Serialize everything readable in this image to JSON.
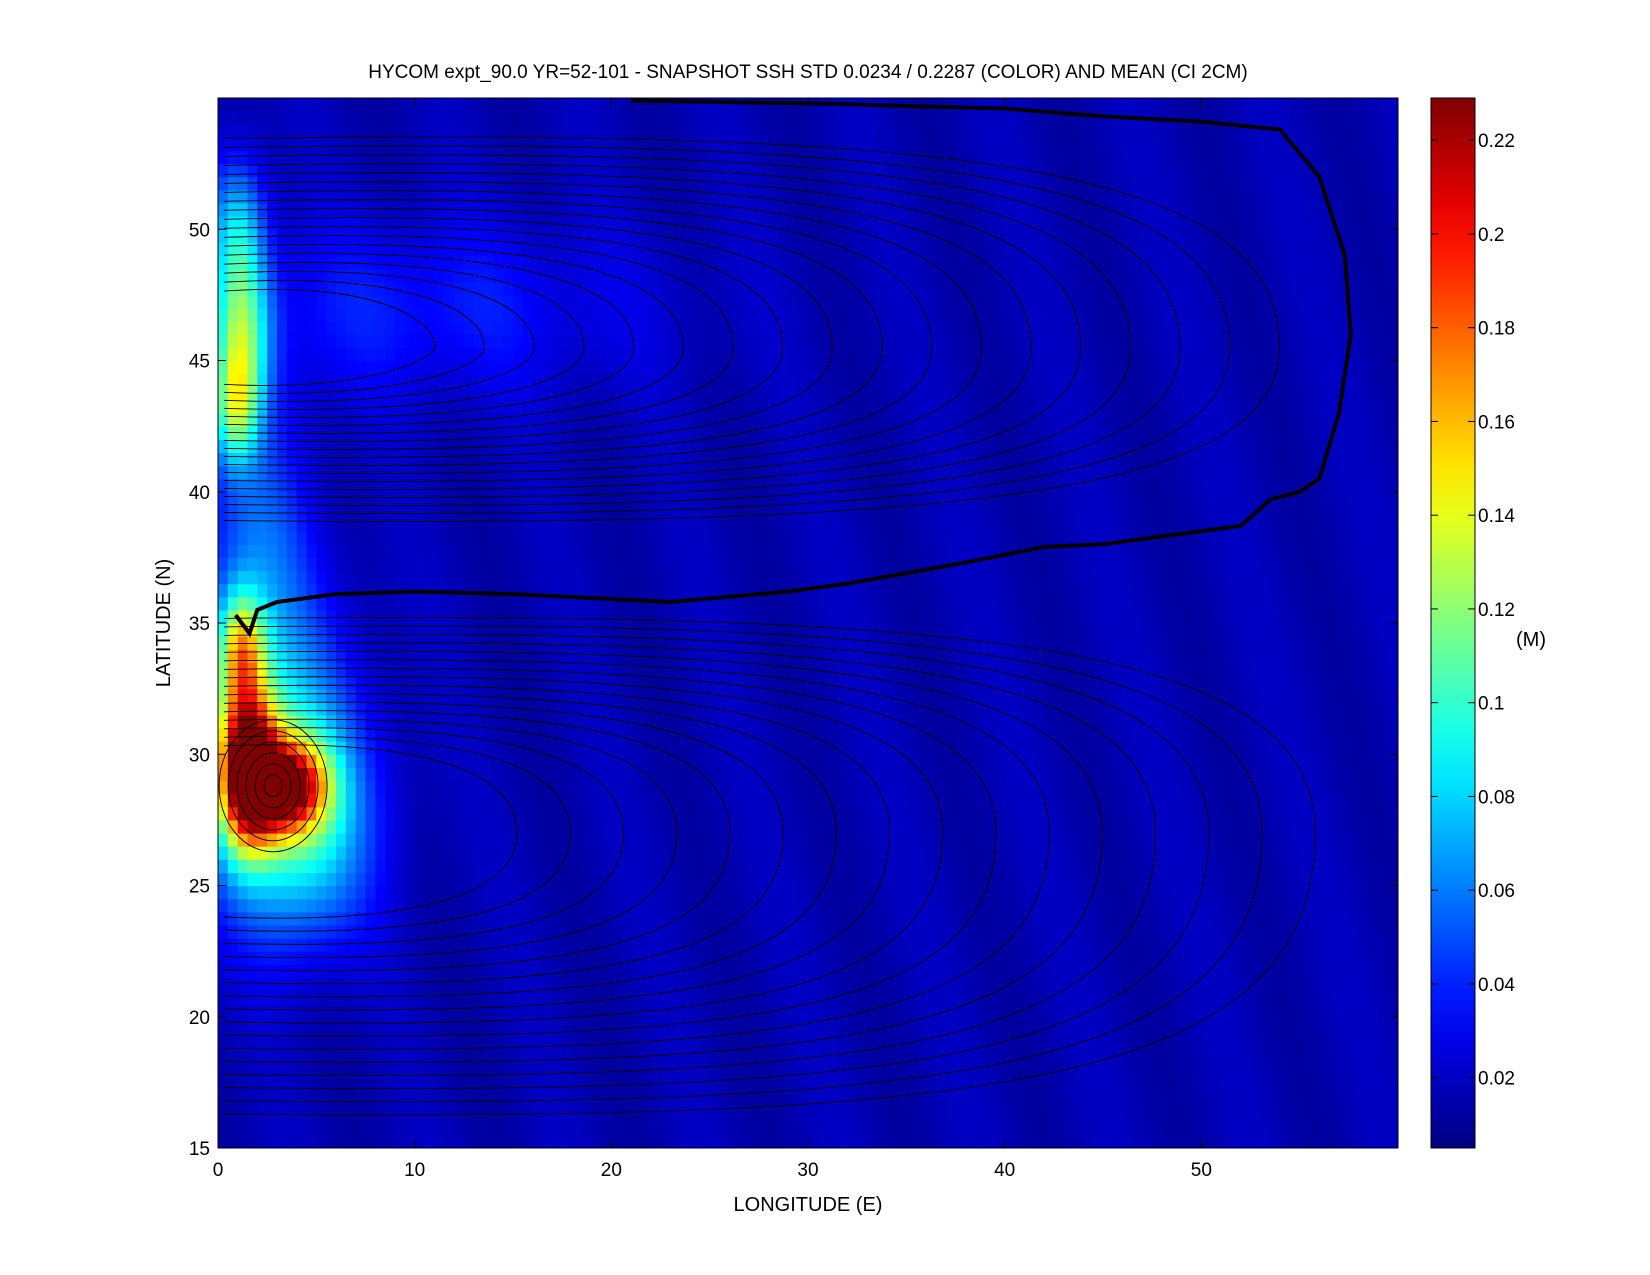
{
  "chart_data": {
    "type": "heatmap",
    "title": "HYCOM expt_90.0 YR=52-101 - SNAPSHOT SSH STD 0.0234 / 0.2287 (COLOR) AND MEAN (CI 2CM)",
    "xlabel": "LONGITUDE (E)",
    "ylabel": "LATITUDE (N)",
    "xlim": [
      0,
      60
    ],
    "ylim": [
      15,
      55
    ],
    "x_ticks": [
      0,
      10,
      20,
      30,
      40,
      50
    ],
    "y_ticks": [
      15,
      20,
      25,
      30,
      35,
      40,
      45,
      50
    ],
    "colorbar": {
      "label": "(M)",
      "range": [
        0.0234,
        0.2287
      ],
      "ticks": [
        "0.02",
        "0.04",
        "0.06",
        "0.08",
        "0.1",
        "0.12",
        "0.14",
        "0.16",
        "0.18",
        "0.2",
        "0.22"
      ],
      "tick_values": [
        0.02,
        0.04,
        0.06,
        0.08,
        0.1,
        0.12,
        0.14,
        0.16,
        0.18,
        0.2,
        0.22
      ],
      "colormap": "jet",
      "display_min": 0.005,
      "display_max": 0.229
    },
    "std_field": {
      "background": 0.02,
      "features": [
        {
          "lon": 1.5,
          "lat": 29.5,
          "sd_lon": 1.0,
          "sd_lat": 2.0,
          "value": 0.2
        },
        {
          "lon": 3.5,
          "lat": 28.8,
          "sd_lon": 1.4,
          "sd_lat": 1.2,
          "value": 0.15
        },
        {
          "lon": 4.0,
          "lat": 27.0,
          "sd_lon": 2.5,
          "sd_lat": 3.0,
          "value": 0.07
        },
        {
          "lon": 1.2,
          "lat": 34.0,
          "sd_lon": 0.8,
          "sd_lat": 1.5,
          "value": 0.1
        },
        {
          "lon": 2.5,
          "lat": 31.0,
          "sd_lon": 3.0,
          "sd_lat": 3.5,
          "value": 0.05
        },
        {
          "lon": 1.2,
          "lat": 46.0,
          "sd_lon": 1.0,
          "sd_lat": 2.0,
          "value": 0.08
        },
        {
          "lon": 0.9,
          "lat": 43.2,
          "sd_lon": 0.8,
          "sd_lat": 1.5,
          "value": 0.08
        },
        {
          "lon": 10.0,
          "lat": 47.0,
          "sd_lon": 8.0,
          "sd_lat": 2.5,
          "value": 0.022
        },
        {
          "lon": 1.0,
          "lat": 50.0,
          "sd_lon": 1.0,
          "sd_lat": 2.0,
          "value": 0.06
        },
        {
          "lon": 2.0,
          "lat": 38.0,
          "sd_lon": 2.0,
          "sd_lat": 4.0,
          "value": 0.035
        }
      ]
    },
    "zero_contour": [
      [
        21.0,
        54.9
      ],
      [
        30.0,
        54.8
      ],
      [
        40.0,
        54.6
      ],
      [
        45.0,
        54.3
      ],
      [
        50.0,
        54.1
      ],
      [
        54.0,
        53.8
      ],
      [
        56.0,
        52.0
      ],
      [
        57.3,
        49.0
      ],
      [
        57.6,
        46.0
      ],
      [
        57.0,
        43.0
      ],
      [
        56.0,
        40.5
      ],
      [
        55.0,
        40.0
      ],
      [
        53.5,
        39.7
      ],
      [
        52.0,
        38.7
      ],
      [
        50.0,
        38.5
      ],
      [
        48.0,
        38.3
      ],
      [
        45.0,
        38.0
      ],
      [
        42.0,
        37.9
      ],
      [
        38.0,
        37.3
      ],
      [
        35.0,
        36.9
      ],
      [
        32.0,
        36.5
      ],
      [
        29.0,
        36.2
      ],
      [
        26.0,
        36.0
      ],
      [
        23.0,
        35.8
      ],
      [
        15.0,
        36.1
      ],
      [
        10.0,
        36.2
      ],
      [
        6.0,
        36.1
      ],
      [
        3.0,
        35.8
      ],
      [
        2.0,
        35.5
      ],
      [
        1.6,
        34.6
      ],
      [
        1.2,
        35.0
      ],
      [
        0.9,
        35.3
      ]
    ]
  }
}
